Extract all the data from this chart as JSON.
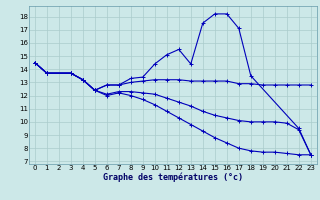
{
  "title": "Graphe des températures (°c)",
  "background_color": "#cce8e8",
  "grid_color": "#aacccc",
  "line_color": "#0000bb",
  "xlim": [
    -0.5,
    23.5
  ],
  "ylim": [
    6.8,
    18.8
  ],
  "xticks": [
    0,
    1,
    2,
    3,
    4,
    5,
    6,
    7,
    8,
    9,
    10,
    11,
    12,
    13,
    14,
    15,
    16,
    17,
    18,
    19,
    20,
    21,
    22,
    23
  ],
  "yticks": [
    7,
    8,
    9,
    10,
    11,
    12,
    13,
    14,
    15,
    16,
    17,
    18
  ],
  "lines": [
    {
      "x": [
        0,
        1,
        3,
        4,
        5,
        6,
        7,
        8,
        9,
        10,
        11,
        12,
        13,
        14,
        15,
        16,
        17,
        18,
        22,
        23
      ],
      "y": [
        14.5,
        13.7,
        13.7,
        13.2,
        12.4,
        12.8,
        12.8,
        13.3,
        13.4,
        14.4,
        15.1,
        15.5,
        14.4,
        17.5,
        18.2,
        18.2,
        17.1,
        13.5,
        9.5,
        7.5
      ]
    },
    {
      "x": [
        0,
        1,
        3,
        4,
        5,
        6,
        7,
        8,
        9,
        10,
        11,
        12,
        13,
        14,
        15,
        16,
        17,
        18,
        19,
        20,
        21,
        22,
        23
      ],
      "y": [
        14.5,
        13.7,
        13.7,
        13.2,
        12.4,
        12.8,
        12.8,
        13.0,
        13.1,
        13.2,
        13.2,
        13.2,
        13.1,
        13.1,
        13.1,
        13.1,
        12.9,
        12.9,
        12.8,
        12.8,
        12.8,
        12.8,
        12.8
      ]
    },
    {
      "x": [
        0,
        1,
        3,
        4,
        5,
        6,
        7,
        8,
        9,
        10,
        11,
        12,
        13,
        14,
        15,
        16,
        17,
        18,
        19,
        20,
        21,
        22,
        23
      ],
      "y": [
        14.5,
        13.7,
        13.7,
        13.2,
        12.4,
        12.1,
        12.3,
        12.3,
        12.2,
        12.1,
        11.8,
        11.5,
        11.2,
        10.8,
        10.5,
        10.3,
        10.1,
        10.0,
        10.0,
        10.0,
        9.9,
        9.4,
        7.5
      ]
    },
    {
      "x": [
        0,
        1,
        3,
        4,
        5,
        6,
        7,
        8,
        9,
        10,
        11,
        12,
        13,
        14,
        15,
        16,
        17,
        18,
        19,
        20,
        21,
        22,
        23
      ],
      "y": [
        14.5,
        13.7,
        13.7,
        13.2,
        12.4,
        12.0,
        12.2,
        12.0,
        11.7,
        11.3,
        10.8,
        10.3,
        9.8,
        9.3,
        8.8,
        8.4,
        8.0,
        7.8,
        7.7,
        7.7,
        7.6,
        7.5,
        7.5
      ]
    }
  ]
}
